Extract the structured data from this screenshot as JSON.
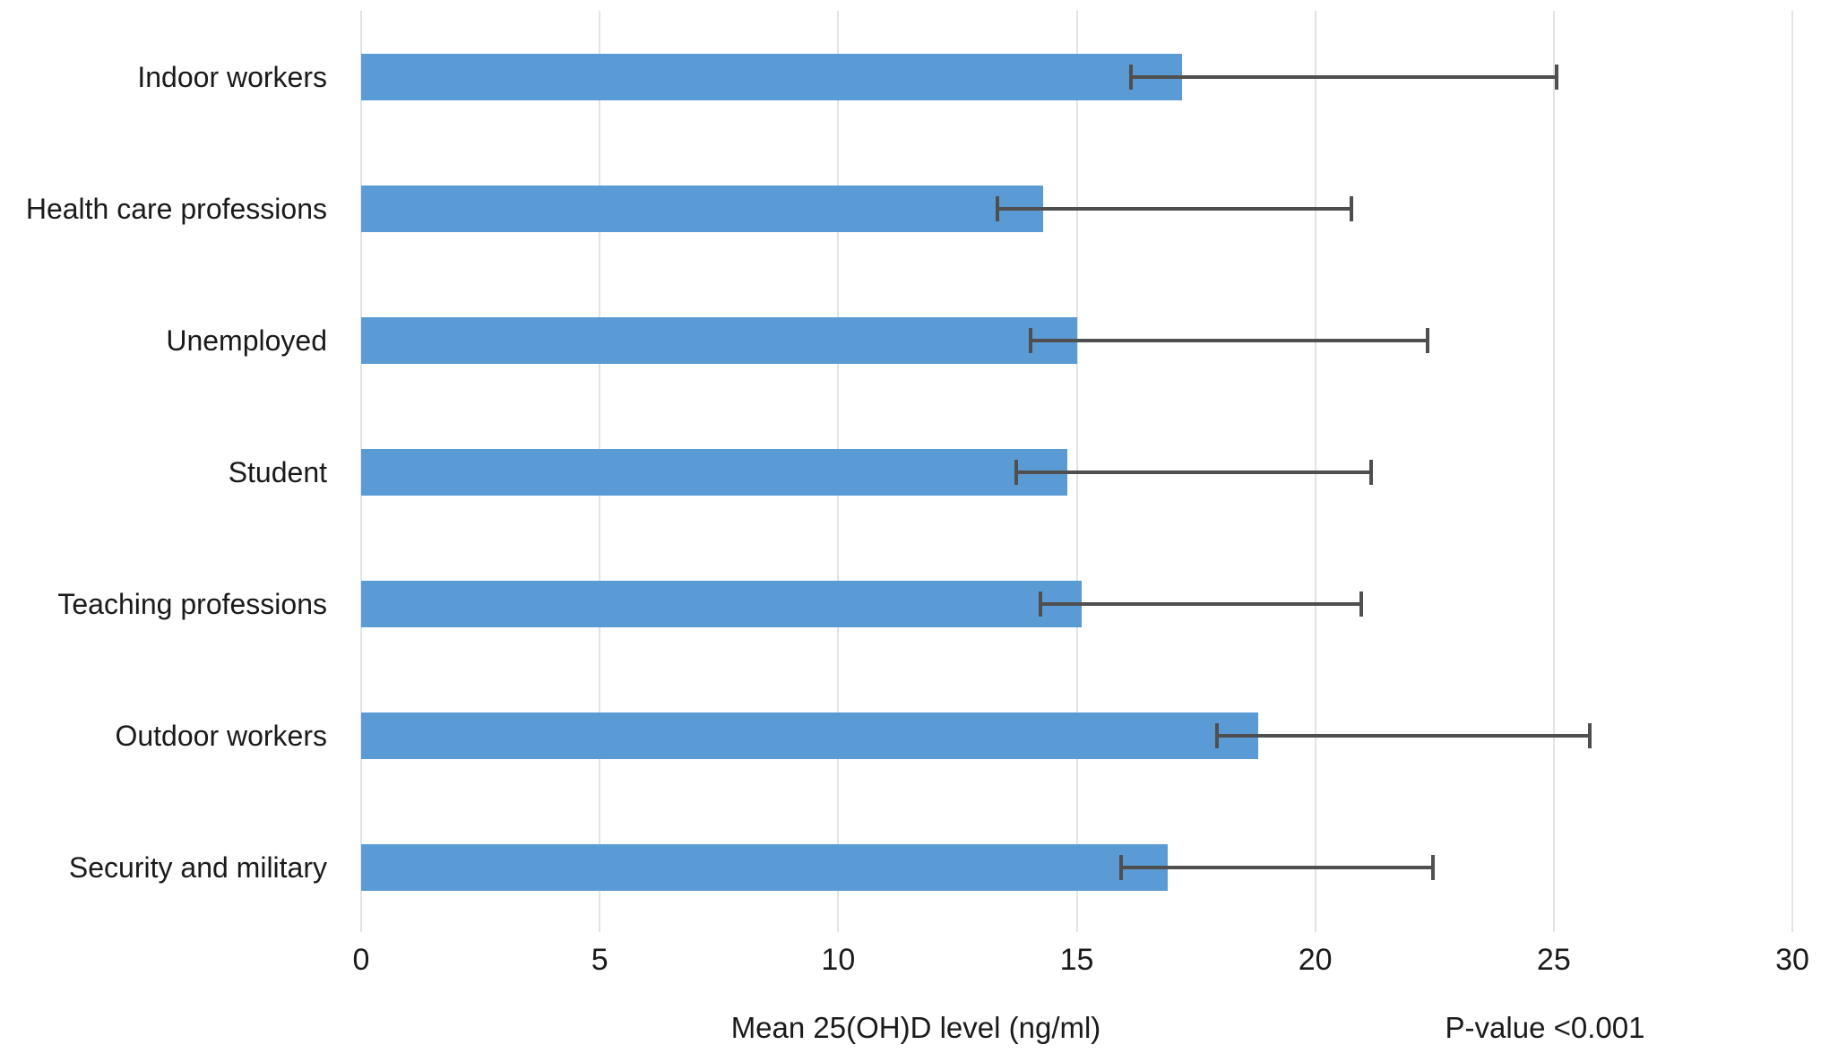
{
  "chart_data": {
    "type": "bar",
    "orientation": "horizontal",
    "title": "",
    "xlabel": "Mean 25(OH)D level (ng/ml)",
    "ylabel": "",
    "annotation": "P-value <0.001",
    "xlim": [
      0,
      30
    ],
    "xticks": [
      0,
      5,
      10,
      15,
      20,
      25,
      30
    ],
    "xtick_labels": [
      "0",
      "5",
      "10",
      "15",
      "20",
      "25",
      "30"
    ],
    "grid": true,
    "legend": false,
    "categories": [
      "Indoor workers",
      "Health care professions",
      "Unemployed",
      "Student",
      "Teaching professions",
      "Outdoor workers",
      "Security and military"
    ],
    "series": [
      {
        "name": "Mean 25(OH)D level (ng/ml)",
        "values": [
          17.2,
          14.3,
          15.0,
          14.8,
          15.1,
          18.8,
          16.9
        ],
        "error_low": [
          16.1,
          13.3,
          14.0,
          13.7,
          14.2,
          17.9,
          15.9
        ],
        "error_high": [
          25.1,
          20.8,
          22.4,
          21.2,
          21.0,
          25.8,
          22.5
        ]
      }
    ],
    "colors": {
      "bar": "#5B9BD5",
      "error_bar": "#4f4f4f",
      "gridline": "#e3e3e3",
      "text": "#1a1a1a",
      "background": "#ffffff"
    }
  }
}
